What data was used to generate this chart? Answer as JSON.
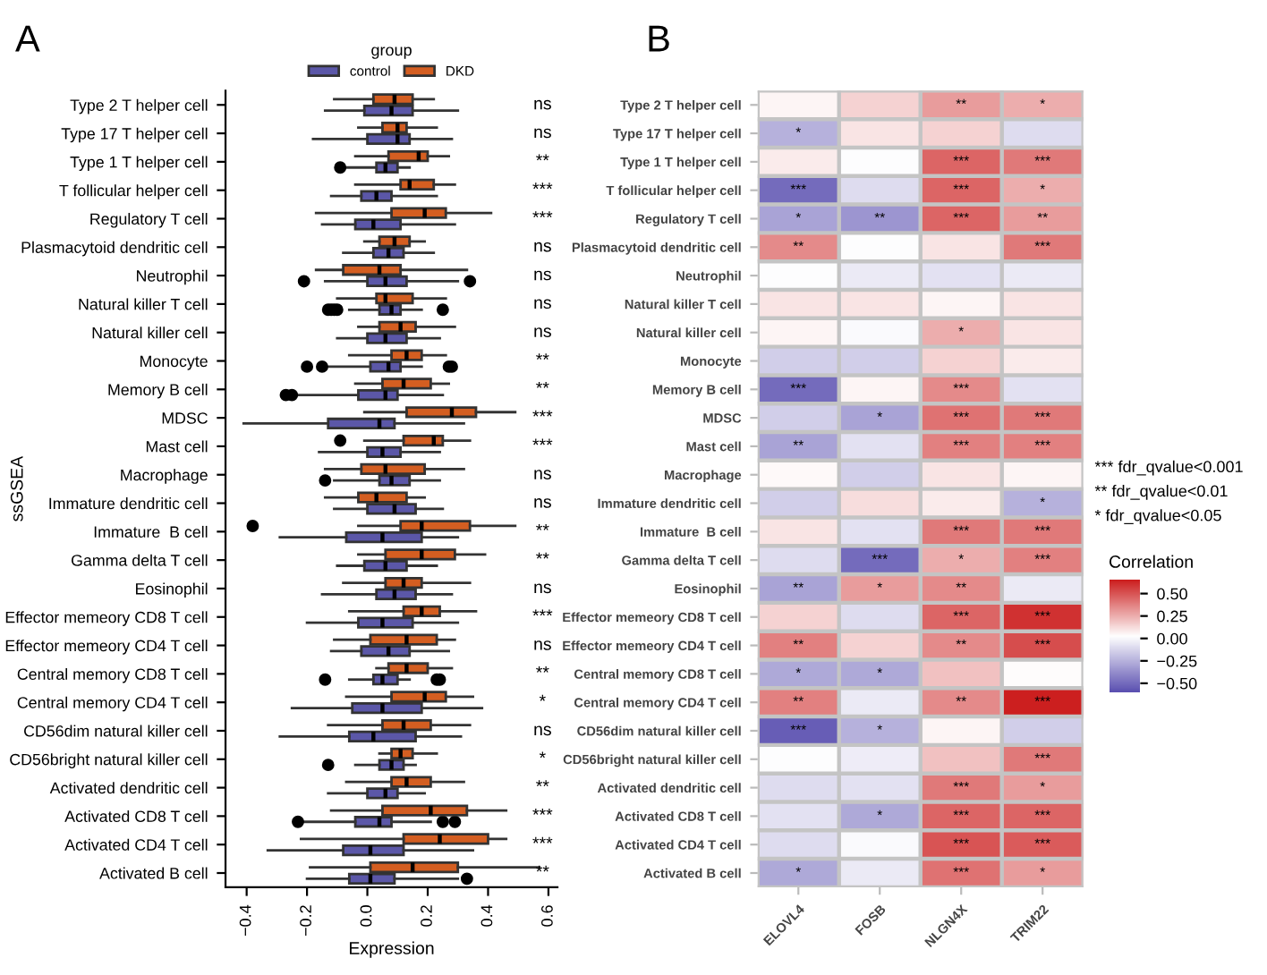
{
  "chart_data": [
    {
      "type": "box",
      "title": "A",
      "orientation": "horizontal",
      "xlabel": "Expression",
      "ylabel": "ssGSEA",
      "legend": "top",
      "legend_title": "group",
      "categories": [
        "Type 2 T helper cell",
        "Type 17 T helper cell",
        "Type 1 T helper cell",
        "T follicular helper cell",
        "Regulatory T cell",
        "Plasmacytoid dendritic cell",
        "Neutrophil",
        "Natural killer T cell",
        "Natural killer cell",
        "Monocyte",
        "Memory B cell",
        "MDSC",
        "Mast cell",
        "Macrophage",
        "Immature dendritic cell",
        "Immature  B cell",
        "Gamma delta T cell",
        "Eosinophil",
        "Effector memeory CD8 T cell",
        "Effector memeory CD4 T cell",
        "Central memory CD8 T cell",
        "Central memory CD4 T cell",
        "CD56dim natural killer cell",
        "CD56bright natural killer cell",
        "Activated dendritic cell",
        "Activated CD8 T cell",
        "Activated CD4 T cell",
        "Activated B cell"
      ],
      "xlim": [
        -0.47,
        0.63
      ],
      "xticks": [
        {
          "value": -0.4,
          "label": "−0.4"
        },
        {
          "value": -0.2,
          "label": "−0.2"
        },
        {
          "value": 0,
          "label": "0.0"
        },
        {
          "value": 0.2,
          "label": "0.2"
        },
        {
          "value": 0.4,
          "label": "0.4"
        },
        {
          "value": 0.6,
          "label": "0.6"
        }
      ],
      "series": [
        {
          "name": "control",
          "color": "#5b57a8",
          "boxes": [
            {
              "low": -0.14,
              "q1": -0.01,
              "median": 0.08,
              "q3": 0.15,
              "high": 0.3
            },
            {
              "low": -0.18,
              "q1": 0.0,
              "median": 0.1,
              "q3": 0.14,
              "high": 0.28
            },
            {
              "low": -0.07,
              "q1": 0.03,
              "median": 0.06,
              "q3": 0.1,
              "high": 0.14,
              "outliers": [
                -0.09
              ]
            },
            {
              "low": -0.12,
              "q1": -0.02,
              "median": 0.03,
              "q3": 0.08,
              "high": 0.23
            },
            {
              "low": -0.15,
              "q1": -0.04,
              "median": 0.02,
              "q3": 0.11,
              "high": 0.29
            },
            {
              "low": -0.08,
              "q1": 0.02,
              "median": 0.07,
              "q3": 0.12,
              "high": 0.22
            },
            {
              "low": -0.14,
              "q1": 0.0,
              "median": 0.06,
              "q3": 0.13,
              "high": 0.3,
              "outliers": [
                -0.21,
                0.34
              ]
            },
            {
              "low": -0.06,
              "q1": 0.04,
              "median": 0.08,
              "q3": 0.11,
              "high": 0.18,
              "outliers": [
                -0.13,
                -0.12,
                -0.11,
                -0.1,
                0.25
              ]
            },
            {
              "low": -0.1,
              "q1": 0.0,
              "median": 0.06,
              "q3": 0.13,
              "high": 0.24
            },
            {
              "low": -0.14,
              "q1": 0.01,
              "median": 0.07,
              "q3": 0.11,
              "high": 0.18,
              "outliers": [
                -0.2,
                -0.15,
                0.27,
                0.28
              ]
            },
            {
              "low": -0.23,
              "q1": -0.03,
              "median": 0.06,
              "q3": 0.1,
              "high": 0.25,
              "outliers": [
                -0.27,
                -0.25
              ]
            },
            {
              "low": -0.41,
              "q1": -0.13,
              "median": 0.04,
              "q3": 0.09,
              "high": 0.32
            },
            {
              "low": -0.16,
              "q1": 0.0,
              "median": 0.05,
              "q3": 0.11,
              "high": 0.24
            },
            {
              "low": -0.11,
              "q1": 0.04,
              "median": 0.08,
              "q3": 0.14,
              "high": 0.24,
              "outliers": [
                -0.14
              ]
            },
            {
              "low": -0.11,
              "q1": 0.0,
              "median": 0.09,
              "q3": 0.16,
              "high": 0.25
            },
            {
              "low": -0.29,
              "q1": -0.07,
              "median": 0.05,
              "q3": 0.18,
              "high": 0.3
            },
            {
              "low": -0.1,
              "q1": -0.01,
              "median": 0.06,
              "q3": 0.13,
              "high": 0.23
            },
            {
              "low": -0.15,
              "q1": 0.03,
              "median": 0.09,
              "q3": 0.16,
              "high": 0.28
            },
            {
              "low": -0.2,
              "q1": -0.03,
              "median": 0.05,
              "q3": 0.15,
              "high": 0.3
            },
            {
              "low": -0.12,
              "q1": -0.02,
              "median": 0.07,
              "q3": 0.14,
              "high": 0.27
            },
            {
              "low": -0.06,
              "q1": 0.02,
              "median": 0.05,
              "q3": 0.1,
              "high": 0.14,
              "outliers": [
                -0.14,
                0.23,
                0.24
              ]
            },
            {
              "low": -0.25,
              "q1": -0.05,
              "median": 0.05,
              "q3": 0.18,
              "high": 0.38
            },
            {
              "low": -0.29,
              "q1": -0.06,
              "median": 0.02,
              "q3": 0.16,
              "high": 0.31
            },
            {
              "low": -0.04,
              "q1": 0.04,
              "median": 0.08,
              "q3": 0.12,
              "high": 0.16,
              "outliers": [
                -0.13
              ]
            },
            {
              "low": -0.13,
              "q1": 0.0,
              "median": 0.06,
              "q3": 0.1,
              "high": 0.19
            },
            {
              "low": -0.21,
              "q1": -0.04,
              "median": 0.04,
              "q3": 0.08,
              "high": 0.21,
              "outliers": [
                -0.23,
                0.25,
                0.29
              ]
            },
            {
              "low": -0.33,
              "q1": -0.08,
              "median": 0.01,
              "q3": 0.12,
              "high": 0.35
            },
            {
              "low": -0.2,
              "q1": -0.06,
              "median": 0.01,
              "q3": 0.09,
              "high": 0.3,
              "outliers": [
                0.33
              ]
            }
          ]
        },
        {
          "name": "DKD",
          "color": "#d45e21",
          "boxes": [
            {
              "low": -0.11,
              "q1": 0.02,
              "median": 0.09,
              "q3": 0.15,
              "high": 0.22
            },
            {
              "low": -0.03,
              "q1": 0.05,
              "median": 0.1,
              "q3": 0.13,
              "high": 0.23
            },
            {
              "low": -0.04,
              "q1": 0.07,
              "median": 0.17,
              "q3": 0.2,
              "high": 0.27
            },
            {
              "low": -0.04,
              "q1": 0.11,
              "median": 0.14,
              "q3": 0.22,
              "high": 0.29
            },
            {
              "low": -0.17,
              "q1": 0.08,
              "median": 0.19,
              "q3": 0.26,
              "high": 0.41
            },
            {
              "low": -0.01,
              "q1": 0.04,
              "median": 0.09,
              "q3": 0.14,
              "high": 0.19
            },
            {
              "low": -0.17,
              "q1": -0.08,
              "median": 0.04,
              "q3": 0.11,
              "high": 0.33
            },
            {
              "low": -0.1,
              "q1": 0.03,
              "median": 0.06,
              "q3": 0.15,
              "high": 0.26
            },
            {
              "low": -0.03,
              "q1": 0.04,
              "median": 0.11,
              "q3": 0.16,
              "high": 0.29
            },
            {
              "low": -0.06,
              "q1": 0.08,
              "median": 0.13,
              "q3": 0.18,
              "high": 0.26
            },
            {
              "low": -0.04,
              "q1": 0.05,
              "median": 0.12,
              "q3": 0.21,
              "high": 0.27
            },
            {
              "low": -0.01,
              "q1": 0.13,
              "median": 0.28,
              "q3": 0.36,
              "high": 0.49
            },
            {
              "low": -0.01,
              "q1": 0.12,
              "median": 0.22,
              "q3": 0.25,
              "high": 0.34,
              "outliers": [
                -0.09
              ]
            },
            {
              "low": -0.14,
              "q1": -0.02,
              "median": 0.06,
              "q3": 0.19,
              "high": 0.32
            },
            {
              "low": -0.14,
              "q1": -0.03,
              "median": 0.03,
              "q3": 0.13,
              "high": 0.19
            },
            {
              "low": -0.03,
              "q1": 0.11,
              "median": 0.18,
              "q3": 0.34,
              "high": 0.49,
              "outliers": [
                -0.38
              ]
            },
            {
              "low": -0.03,
              "q1": 0.06,
              "median": 0.18,
              "q3": 0.29,
              "high": 0.39
            },
            {
              "low": -0.08,
              "q1": 0.06,
              "median": 0.12,
              "q3": 0.18,
              "high": 0.34
            },
            {
              "low": -0.06,
              "q1": 0.12,
              "median": 0.18,
              "q3": 0.24,
              "high": 0.36
            },
            {
              "low": -0.11,
              "q1": 0.01,
              "median": 0.13,
              "q3": 0.23,
              "high": 0.29
            },
            {
              "low": 0.03,
              "q1": 0.07,
              "median": 0.13,
              "q3": 0.2,
              "high": 0.28
            },
            {
              "low": -0.07,
              "q1": 0.08,
              "median": 0.19,
              "q3": 0.26,
              "high": 0.35
            },
            {
              "low": -0.13,
              "q1": 0.05,
              "median": 0.12,
              "q3": 0.21,
              "high": 0.34
            },
            {
              "low": 0.04,
              "q1": 0.08,
              "median": 0.11,
              "q3": 0.15,
              "high": 0.23
            },
            {
              "low": -0.07,
              "q1": 0.08,
              "median": 0.13,
              "q3": 0.21,
              "high": 0.32
            },
            {
              "low": -0.12,
              "q1": 0.05,
              "median": 0.21,
              "q3": 0.33,
              "high": 0.46
            },
            {
              "low": -0.22,
              "q1": 0.12,
              "median": 0.24,
              "q3": 0.4,
              "high": 0.46
            },
            {
              "low": -0.19,
              "q1": 0.01,
              "median": 0.15,
              "q3": 0.3,
              "high": 0.57
            }
          ]
        }
      ],
      "annotations": [
        "ns",
        "ns",
        "**",
        "***",
        "***",
        "ns",
        "ns",
        "ns",
        "ns",
        "**",
        "**",
        "***",
        "***",
        "ns",
        "ns",
        "**",
        "**",
        "ns",
        "***",
        "ns",
        "**",
        "*",
        "ns",
        "*",
        "**",
        "***",
        "***",
        "**"
      ]
    },
    {
      "type": "heatmap",
      "title": "B",
      "clabel": "Correlation",
      "grid": true,
      "categories": [
        "ELOVL4",
        "FOSB",
        "NLGN4X",
        "TRIM22"
      ],
      "y_categories": [
        "Type 2 T helper cell",
        "Type 17 T helper cell",
        "Type 1 T helper cell",
        "T follicular helper cell",
        "Regulatory T cell",
        "Plasmacytoid dendritic cell",
        "Neutrophil",
        "Natural killer T cell",
        "Natural killer cell",
        "Monocyte",
        "Memory B cell",
        "MDSC",
        "Mast cell",
        "Macrophage",
        "Immature dendritic cell",
        "Immature  B cell",
        "Gamma delta T cell",
        "Eosinophil",
        "Effector memeory CD8 T cell",
        "Effector memeory CD4 T cell",
        "Central memory CD8 T cell",
        "Central memory CD4 T cell",
        "CD56dim natural killer cell",
        "CD56bright natural killer cell",
        "Activated dendritic cell",
        "Activated CD8 T cell",
        "Activated CD4 T cell",
        "Activated B cell"
      ],
      "cells": [
        [
          0.05,
          0.15,
          0.3,
          0.25
        ],
        [
          -0.25,
          0.1,
          0.15,
          -0.1
        ],
        [
          0.08,
          0.02,
          0.45,
          0.4
        ],
        [
          -0.5,
          -0.1,
          0.45,
          0.25
        ],
        [
          -0.3,
          -0.35,
          0.45,
          0.3
        ],
        [
          0.35,
          0.02,
          0.1,
          0.4
        ],
        [
          0.02,
          -0.05,
          -0.08,
          -0.05
        ],
        [
          0.1,
          0.1,
          0.05,
          0.1
        ],
        [
          0.05,
          0.01,
          0.25,
          0.1
        ],
        [
          -0.15,
          -0.15,
          0.15,
          0.08
        ],
        [
          -0.5,
          0.05,
          0.35,
          -0.08
        ],
        [
          -0.15,
          -0.3,
          0.42,
          0.4
        ],
        [
          -0.3,
          -0.08,
          0.38,
          0.38
        ],
        [
          0.04,
          -0.15,
          0.1,
          0.05
        ],
        [
          -0.15,
          0.12,
          0.08,
          -0.25
        ],
        [
          0.1,
          -0.08,
          0.4,
          0.4
        ],
        [
          -0.1,
          -0.5,
          0.25,
          0.38
        ],
        [
          -0.3,
          0.3,
          0.35,
          -0.05
        ],
        [
          0.15,
          -0.1,
          0.45,
          0.6
        ],
        [
          0.38,
          0.15,
          0.35,
          0.52
        ],
        [
          -0.28,
          -0.28,
          0.2,
          0.03
        ],
        [
          0.38,
          -0.05,
          0.35,
          0.65
        ],
        [
          -0.55,
          -0.25,
          0.05,
          -0.15
        ],
        [
          0.02,
          -0.04,
          0.2,
          0.4
        ],
        [
          -0.1,
          -0.08,
          0.4,
          0.3
        ],
        [
          -0.08,
          -0.28,
          0.45,
          0.45
        ],
        [
          -0.1,
          0.01,
          0.5,
          0.48
        ],
        [
          -0.28,
          -0.05,
          0.42,
          0.3
        ]
      ],
      "cell_labels": [
        [
          null,
          null,
          "**",
          "*"
        ],
        [
          "*",
          null,
          null,
          null
        ],
        [
          null,
          null,
          "***",
          "***"
        ],
        [
          "***",
          null,
          "***",
          "*"
        ],
        [
          "*",
          "**",
          "***",
          "**"
        ],
        [
          "**",
          null,
          null,
          "***"
        ],
        [
          null,
          null,
          null,
          null
        ],
        [
          null,
          null,
          null,
          null
        ],
        [
          null,
          null,
          "*",
          null
        ],
        [
          null,
          null,
          null,
          null
        ],
        [
          "***",
          null,
          "***",
          null
        ],
        [
          null,
          "*",
          "***",
          "***"
        ],
        [
          "**",
          null,
          "***",
          "***"
        ],
        [
          null,
          null,
          null,
          null
        ],
        [
          null,
          null,
          null,
          "*"
        ],
        [
          null,
          null,
          "***",
          "***"
        ],
        [
          null,
          "***",
          "*",
          "***"
        ],
        [
          "**",
          "*",
          "**",
          null
        ],
        [
          null,
          null,
          "***",
          "***"
        ],
        [
          "**",
          null,
          "**",
          "***"
        ],
        [
          "*",
          "*",
          null,
          null
        ],
        [
          "**",
          null,
          "**",
          "***"
        ],
        [
          "***",
          "*",
          null,
          null
        ],
        [
          null,
          null,
          null,
          "***"
        ],
        [
          null,
          null,
          "***",
          "*"
        ],
        [
          null,
          "*",
          "***",
          "***"
        ],
        [
          null,
          null,
          "***",
          "***"
        ],
        [
          "*",
          null,
          "***",
          "*"
        ]
      ],
      "clim": [
        -0.6,
        0.65
      ],
      "cticks": [
        {
          "value": -0.5,
          "label": "−0.50"
        },
        {
          "value": -0.25,
          "label": "−0.25"
        },
        {
          "value": 0,
          "label": "0.00"
        },
        {
          "value": 0.25,
          "label": "0.25"
        },
        {
          "value": 0.5,
          "label": "0.50"
        }
      ],
      "annotations": [
        "*** fdr_qvalue<0.001",
        "** fdr_qvalue<0.01",
        "* fdr_qvalue<0.05"
      ]
    }
  ]
}
